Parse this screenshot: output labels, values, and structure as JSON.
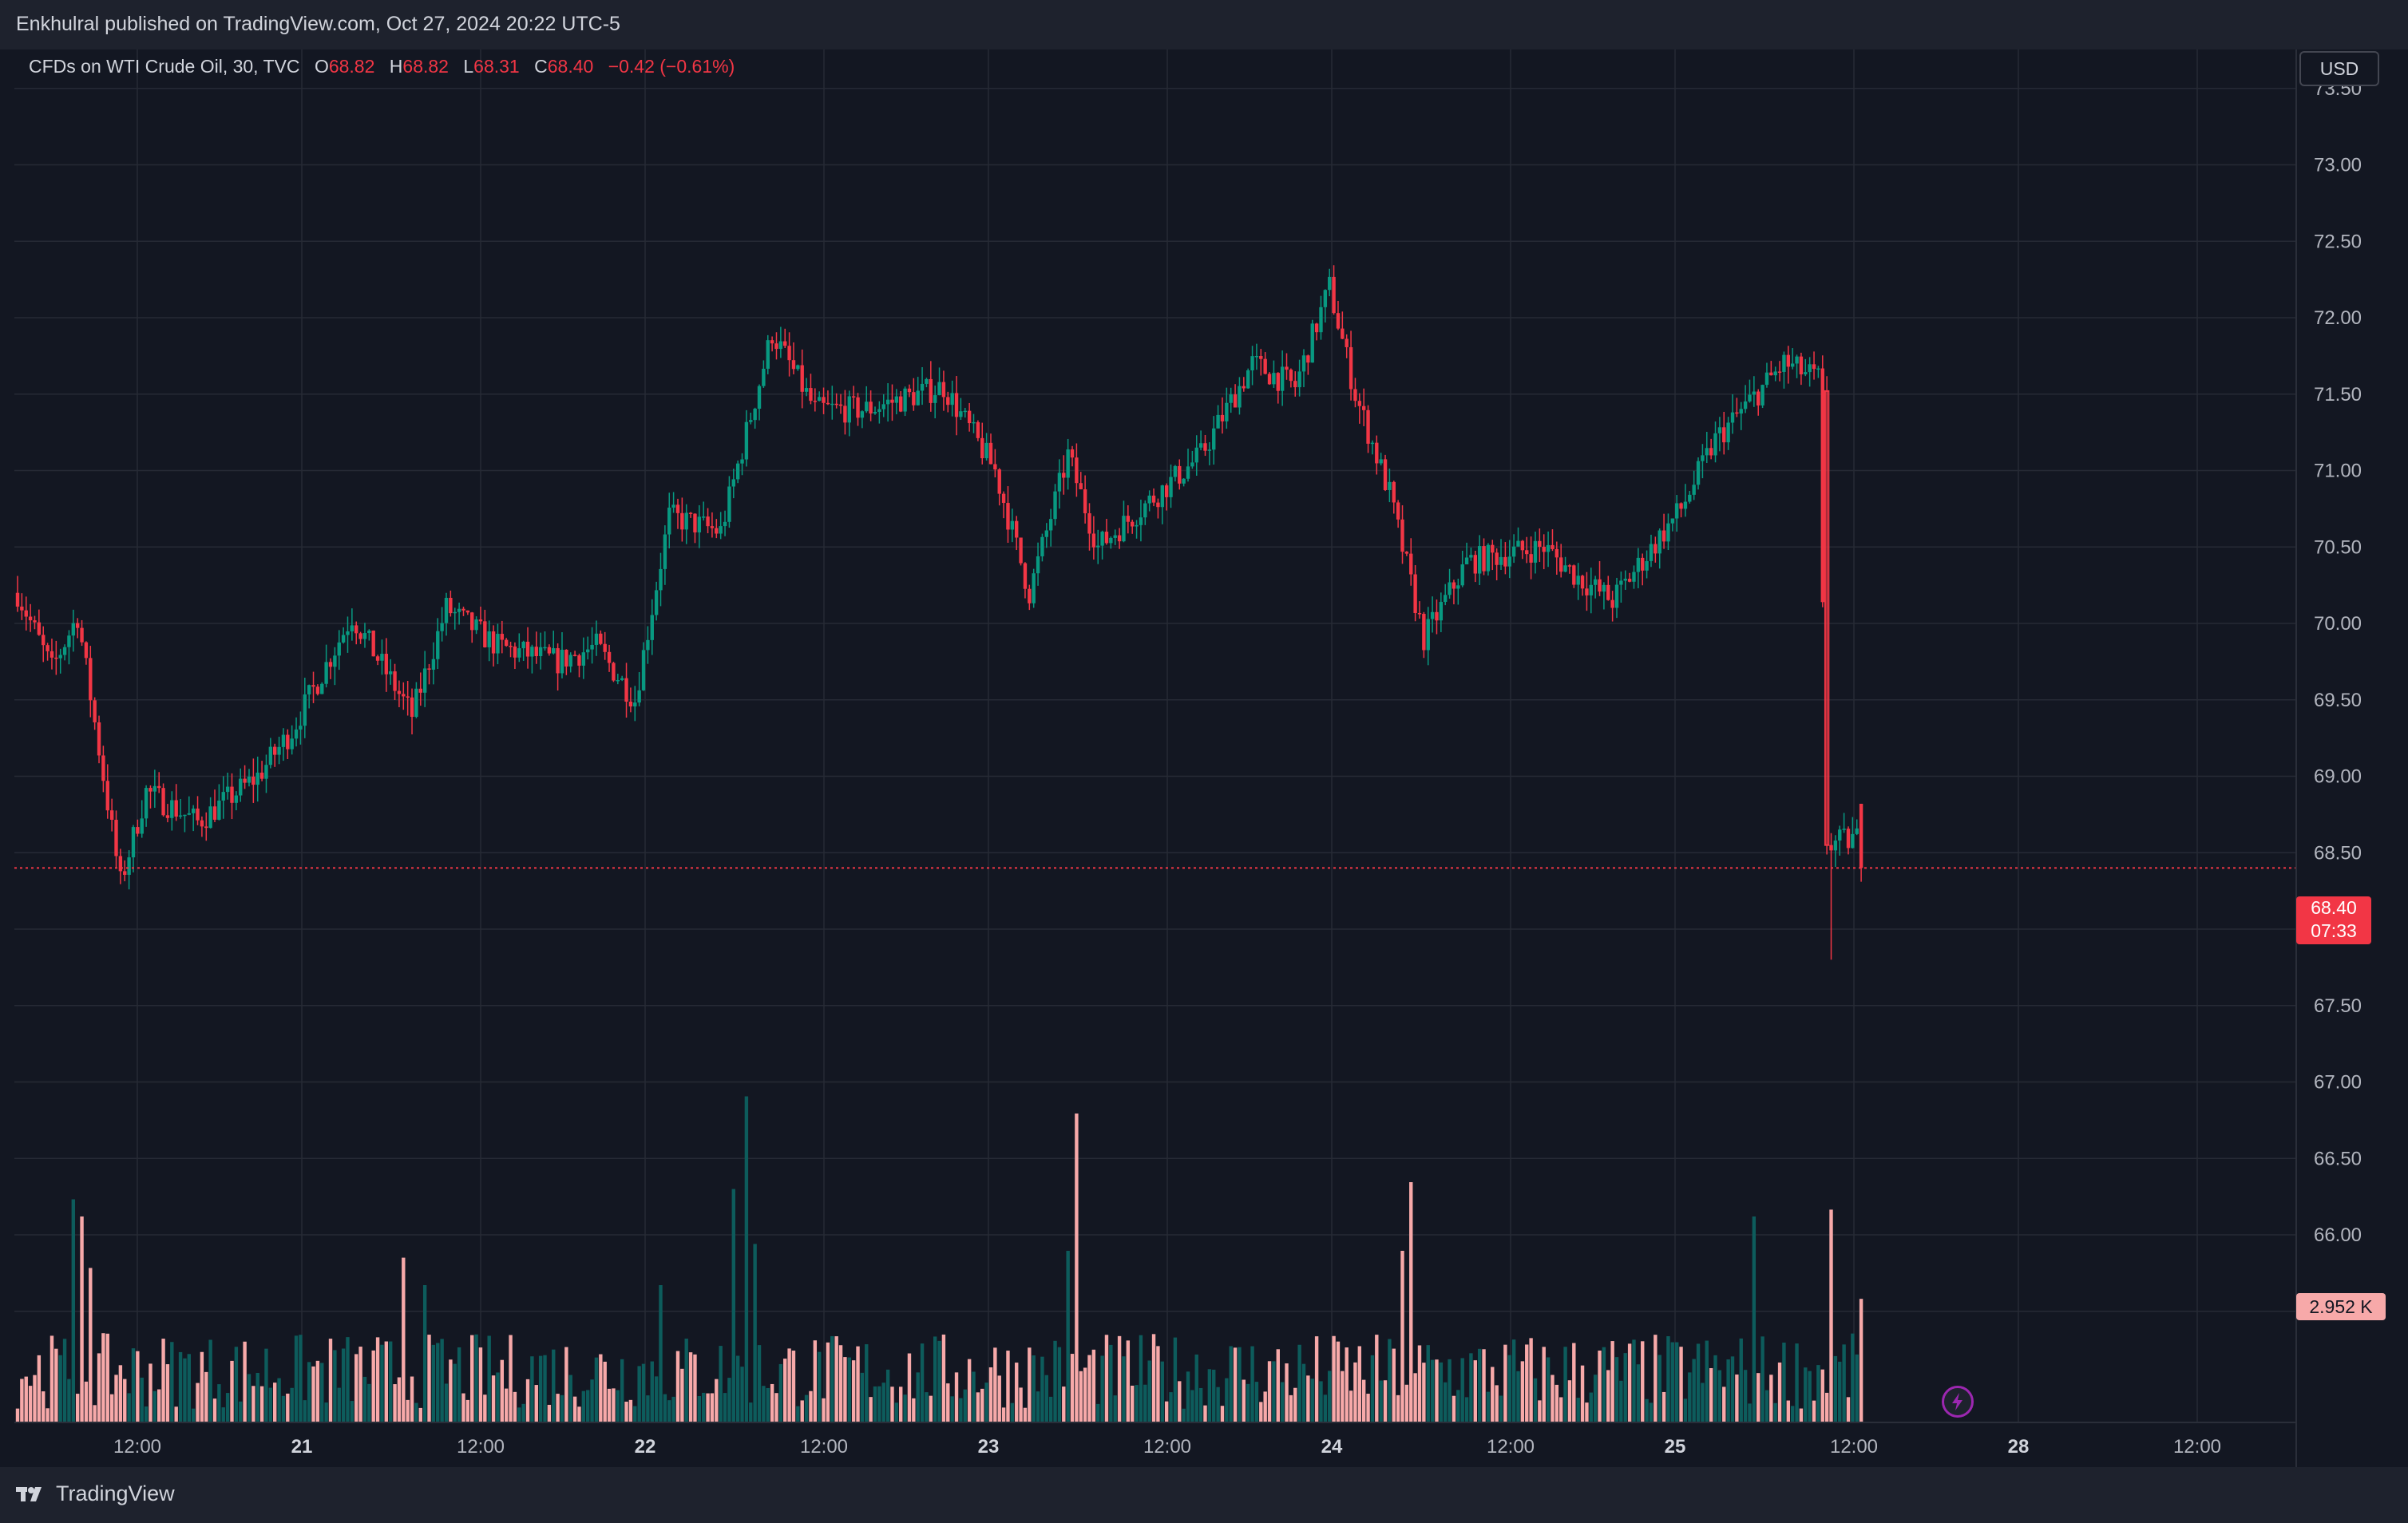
{
  "header": {
    "publisher_text": "Enkhulral published on TradingView.com, Oct 27, 2024 20:22 UTC-5"
  },
  "legend": {
    "symbol": "CFDs on WTI Crude Oil, 30, TVC",
    "o_label": "O",
    "o_value": "68.82",
    "h_label": "H",
    "h_value": "68.82",
    "l_label": "L",
    "l_value": "68.31",
    "c_label": "C",
    "c_value": "68.40",
    "change": "−0.42 (−0.61%)"
  },
  "currency_button": "USD",
  "price_badge": {
    "price": "68.40",
    "countdown": "07:33"
  },
  "volume_badge": "2.952 K",
  "footer": {
    "brand": "TradingView"
  },
  "colors": {
    "up": "#089981",
    "down": "#f23645",
    "vol_up": "#0d5c5c",
    "vol_down": "#f7a9a9",
    "background": "#131722",
    "grid": "#262a35",
    "axis_text": "#b2b5be"
  },
  "chart_data": {
    "type": "candlestick",
    "interval": "30",
    "y_axis": {
      "ticks": [
        "73.50",
        "73.00",
        "72.50",
        "72.00",
        "71.50",
        "71.00",
        "70.50",
        "70.00",
        "69.50",
        "69.00",
        "68.50",
        "68.00",
        "67.50",
        "67.00",
        "66.50",
        "66.00",
        "65.50"
      ],
      "range": [
        65.2,
        73.75
      ]
    },
    "x_axis": {
      "ticks": [
        "12:00",
        "21",
        "12:00",
        "22",
        "12:00",
        "23",
        "12:00",
        "24",
        "12:00",
        "25",
        "12:00",
        "28",
        "12:00"
      ],
      "bold_ticks": [
        "21",
        "22",
        "23",
        "24",
        "25",
        "28"
      ]
    },
    "last_price": 68.4,
    "anchors": [
      {
        "t": 0,
        "p": 70.2
      },
      {
        "t": 8,
        "p": 69.7
      },
      {
        "t": 14,
        "p": 70.05
      },
      {
        "t": 24,
        "p": 68.3
      },
      {
        "t": 30,
        "p": 68.9
      },
      {
        "t": 42,
        "p": 68.7
      },
      {
        "t": 56,
        "p": 69.0
      },
      {
        "t": 64,
        "p": 69.3
      },
      {
        "t": 78,
        "p": 70.05
      },
      {
        "t": 92,
        "p": 69.4
      },
      {
        "t": 100,
        "p": 70.1
      },
      {
        "t": 112,
        "p": 69.85
      },
      {
        "t": 126,
        "p": 69.75
      },
      {
        "t": 135,
        "p": 69.85
      },
      {
        "t": 144,
        "p": 69.5
      },
      {
        "t": 152,
        "p": 70.7
      },
      {
        "t": 164,
        "p": 70.6
      },
      {
        "t": 176,
        "p": 71.9
      },
      {
        "t": 186,
        "p": 71.4
      },
      {
        "t": 198,
        "p": 71.4
      },
      {
        "t": 216,
        "p": 71.55
      },
      {
        "t": 228,
        "p": 71.0
      },
      {
        "t": 236,
        "p": 70.2
      },
      {
        "t": 245,
        "p": 71.1
      },
      {
        "t": 252,
        "p": 70.5
      },
      {
        "t": 264,
        "p": 70.8
      },
      {
        "t": 276,
        "p": 71.1
      },
      {
        "t": 288,
        "p": 71.7
      },
      {
        "t": 298,
        "p": 71.55
      },
      {
        "t": 306,
        "p": 72.2
      },
      {
        "t": 312,
        "p": 71.5
      },
      {
        "t": 320,
        "p": 70.85
      },
      {
        "t": 328,
        "p": 69.9
      },
      {
        "t": 338,
        "p": 70.4
      },
      {
        "t": 346,
        "p": 70.45
      },
      {
        "t": 356,
        "p": 70.5
      },
      {
        "t": 364,
        "p": 70.3
      },
      {
        "t": 372,
        "p": 70.15
      },
      {
        "t": 388,
        "p": 70.75
      },
      {
        "t": 396,
        "p": 71.2
      },
      {
        "t": 412,
        "p": 71.7
      },
      {
        "t": 420,
        "p": 71.6
      },
      {
        "t": 422,
        "p": 68.55
      },
      {
        "t": 430,
        "p": 68.6
      }
    ],
    "volume_spikes": [
      {
        "t": 13,
        "v": 0.65
      },
      {
        "t": 15,
        "v": 0.6
      },
      {
        "t": 17,
        "v": 0.45
      },
      {
        "t": 90,
        "v": 0.48
      },
      {
        "t": 95,
        "v": 0.4
      },
      {
        "t": 150,
        "v": 0.4
      },
      {
        "t": 167,
        "v": 0.68
      },
      {
        "t": 170,
        "v": 0.95
      },
      {
        "t": 172,
        "v": 0.52
      },
      {
        "t": 247,
        "v": 0.9
      },
      {
        "t": 245,
        "v": 0.5
      },
      {
        "t": 325,
        "v": 0.7
      },
      {
        "t": 323,
        "v": 0.5
      },
      {
        "t": 405,
        "v": 0.6
      },
      {
        "t": 423,
        "v": 0.62
      },
      {
        "t": 430,
        "v": 0.36
      }
    ]
  }
}
